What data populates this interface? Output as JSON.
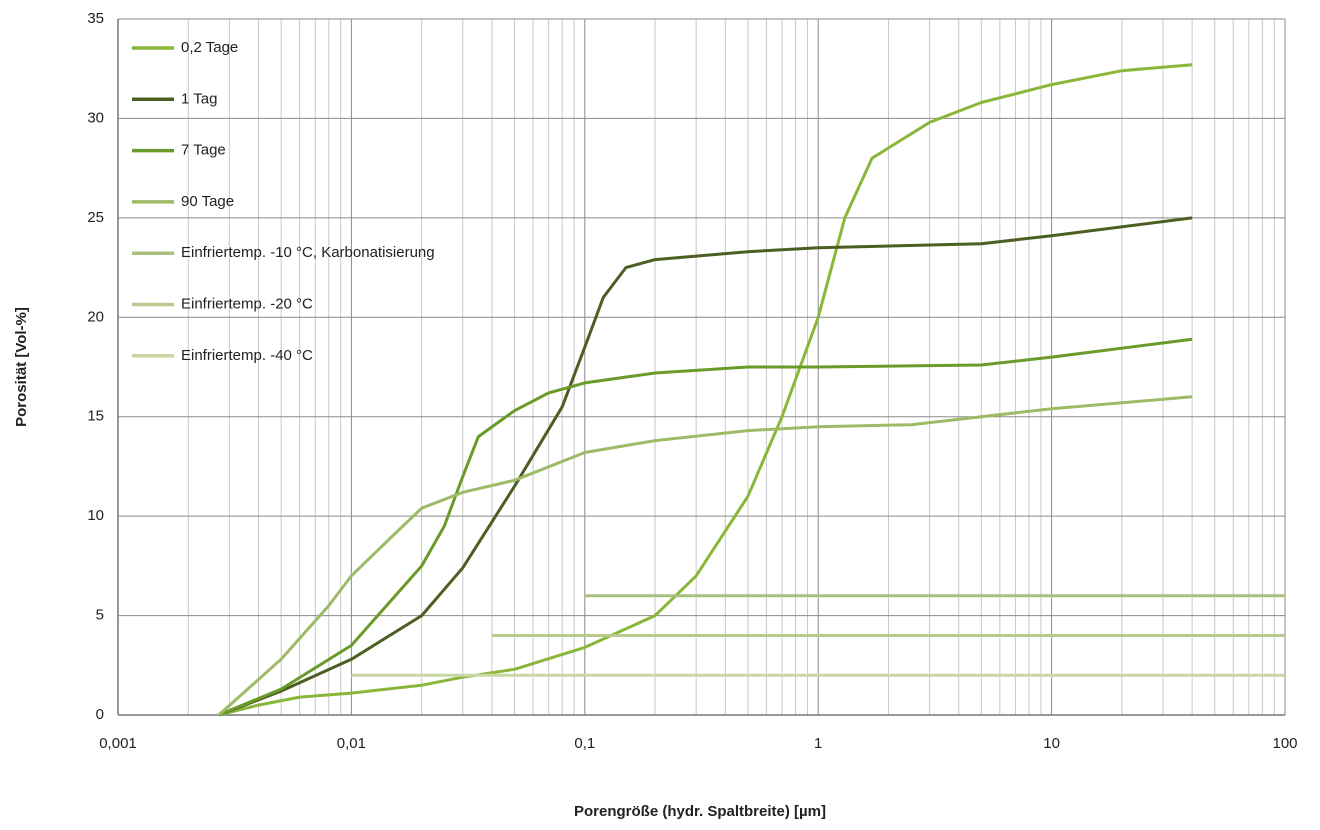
{
  "chart_data": {
    "type": "line",
    "x_label": "Porengröße (hydr. Spaltbreite) [µm]",
    "y_label": "Porosität [Vol-%]",
    "x_scale": "log",
    "xlim": [
      0.001,
      100
    ],
    "xticks": [
      {
        "value": 0.001,
        "label": "0,001"
      },
      {
        "value": 0.01,
        "label": "0,01"
      },
      {
        "value": 0.1,
        "label": "0,1"
      },
      1,
      10,
      100
    ],
    "ylim": [
      0,
      35
    ],
    "yticks": [
      0,
      5,
      10,
      15,
      20,
      25,
      30,
      35
    ],
    "grid": true,
    "minor_grid": true,
    "legend": "top-left",
    "series": [
      {
        "name": "0,2 Tage",
        "color": "#8ab63a",
        "x": [
          0.0027,
          0.004,
          0.006,
          0.01,
          0.02,
          0.03,
          0.05,
          0.1,
          0.2,
          0.3,
          0.5,
          0.7,
          1,
          1.3,
          1.7,
          3,
          5,
          10,
          20,
          40
        ],
        "values": [
          0,
          0.5,
          0.9,
          1.1,
          1.5,
          1.9,
          2.3,
          3.4,
          5,
          7,
          11,
          15,
          20,
          25,
          28,
          29.8,
          30.8,
          31.7,
          32.4,
          32.7
        ]
      },
      {
        "name": "1 Tag",
        "color": "#4b5f22",
        "x": [
          0.0027,
          0.005,
          0.01,
          0.02,
          0.03,
          0.05,
          0.08,
          0.1,
          0.12,
          0.15,
          0.2,
          0.5,
          1,
          5,
          10,
          40
        ],
        "values": [
          0,
          1.2,
          2.8,
          5,
          7.4,
          11.5,
          15.5,
          18.5,
          21,
          22.5,
          22.9,
          23.3,
          23.5,
          23.7,
          24.1,
          25
        ]
      },
      {
        "name": "7 Tage",
        "color": "#6a9a2a",
        "x": [
          0.0027,
          0.005,
          0.01,
          0.02,
          0.025,
          0.03,
          0.035,
          0.05,
          0.07,
          0.1,
          0.2,
          0.5,
          1,
          5,
          10,
          40
        ],
        "values": [
          0,
          1.3,
          3.5,
          7.5,
          9.5,
          12,
          14,
          15.3,
          16.2,
          16.7,
          17.2,
          17.5,
          17.5,
          17.6,
          18,
          18.9
        ]
      },
      {
        "name": "90 Tage",
        "color": "#9dbb66",
        "x": [
          0.0027,
          0.005,
          0.008,
          0.01,
          0.015,
          0.02,
          0.03,
          0.05,
          0.1,
          0.2,
          0.5,
          1,
          2.5,
          5,
          10,
          40
        ],
        "values": [
          0,
          2.8,
          5.5,
          7,
          9,
          10.4,
          11.2,
          11.8,
          13.2,
          13.8,
          14.3,
          14.5,
          14.6,
          15,
          15.4,
          16
        ]
      },
      {
        "name": "Einfriertemp. -10 °C, Karbonatisierung",
        "color": "#a9bf80",
        "x": [
          0.1,
          100
        ],
        "values": [
          6,
          6
        ]
      },
      {
        "name": "Einfriertemp. -20 °C",
        "color": "#b8ca8e",
        "x": [
          0.04,
          100
        ],
        "values": [
          4,
          4
        ]
      },
      {
        "name": "Einfriertemp. -40 °C",
        "color": "#c9d7a2",
        "x": [
          0.01,
          100
        ],
        "values": [
          2,
          2
        ]
      }
    ]
  }
}
